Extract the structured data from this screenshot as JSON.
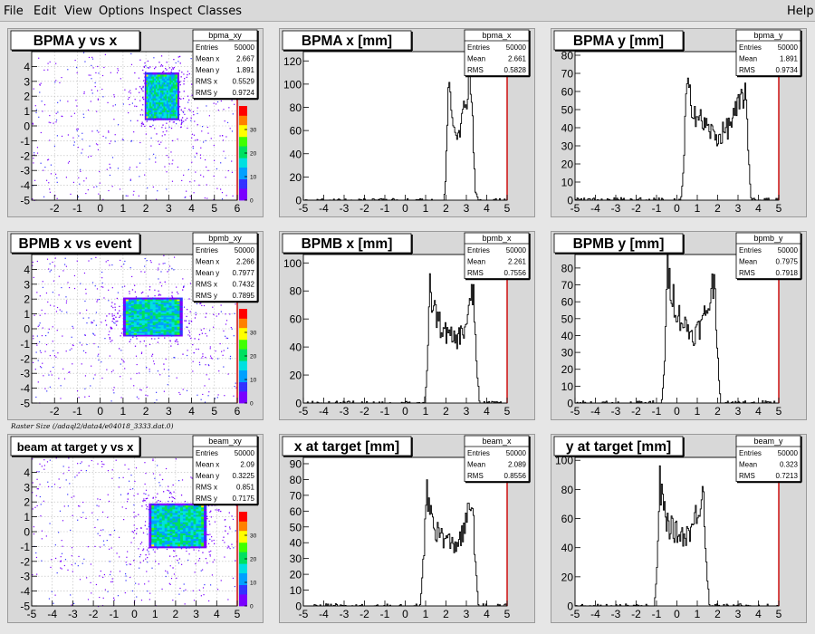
{
  "menu": {
    "items": [
      "File",
      "Edit",
      "View",
      "Options",
      "Inspect",
      "Classes"
    ],
    "help": "Help"
  },
  "caption": "Raster Size (/adaql2/data4/e04018_3333.dat.0)",
  "colors": {
    "frame_bg": "#d8d8d8",
    "plot_bg": "#ffffff",
    "axis_right": "#cc0000",
    "histogram_line": "#000000",
    "palette": [
      "#7a00ff",
      "#3333ff",
      "#00a0ff",
      "#00e0e0",
      "#00e060",
      "#40ff00",
      "#ffff00",
      "#ff8000",
      "#ff0000"
    ]
  },
  "chart_data": [
    {
      "type": "heatmap",
      "title": "BPMA y vs x",
      "stats": {
        "name": "bpma_xy",
        "rows": [
          [
            "Entries",
            "50000"
          ],
          [
            "Mean x",
            "2.667"
          ],
          [
            "Mean y",
            "1.891"
          ],
          [
            "RMS x",
            "0.5529"
          ],
          [
            "RMS y",
            "0.9724"
          ]
        ]
      },
      "xlim": [
        -3,
        6
      ],
      "ylim": [
        -5,
        5
      ],
      "x_ticks": [
        "-2",
        "-1",
        "0",
        "1",
        "2",
        "3",
        "4",
        "5",
        "6"
      ],
      "y_ticks": [
        "-5",
        "-4",
        "-3",
        "-2",
        "-1",
        "0",
        "1",
        "2",
        "3",
        "4"
      ],
      "z_ticks": [
        "0",
        "10",
        "20",
        "30"
      ],
      "zlim": [
        0,
        40
      ],
      "core": {
        "x_range": [
          1.95,
          3.45
        ],
        "y_range": [
          0.4,
          3.6
        ]
      },
      "grid": true
    },
    {
      "type": "area",
      "title": "BPMA x [mm]",
      "stats": {
        "name": "bpma_x",
        "rows": [
          [
            "Entries",
            "50000"
          ],
          [
            "Mean",
            "2.661"
          ],
          [
            "RMS",
            "0.5828"
          ]
        ]
      },
      "xlim": [
        -5,
        5
      ],
      "ylim": [
        0,
        128
      ],
      "x_ticks": [
        "-5",
        "-4",
        "-3",
        "-2",
        "-1",
        "0",
        "1",
        "2",
        "3",
        "4",
        "5"
      ],
      "y_ticks": [
        "0",
        "20",
        "40",
        "60",
        "80",
        "100",
        "120"
      ],
      "profile_x": [
        -5,
        1.9,
        2.0,
        2.1,
        2.2,
        2.4,
        2.6,
        2.8,
        3.0,
        3.2,
        3.3,
        3.45,
        3.6,
        5
      ],
      "profile_y": [
        0,
        0,
        20,
        95,
        100,
        62,
        62,
        68,
        90,
        112,
        70,
        8,
        0,
        0
      ]
    },
    {
      "type": "area",
      "title": "BPMA y [mm]",
      "stats": {
        "name": "bpma_y",
        "rows": [
          [
            "Entries",
            "50000"
          ],
          [
            "Mean",
            "1.891"
          ],
          [
            "RMS",
            "0.9734"
          ]
        ]
      },
      "xlim": [
        -5,
        5
      ],
      "ylim": [
        0,
        82
      ],
      "x_ticks": [
        "-5",
        "-4",
        "-3",
        "-2",
        "-1",
        "0",
        "1",
        "2",
        "3",
        "4",
        "5"
      ],
      "y_ticks": [
        "0",
        "10",
        "20",
        "30",
        "40",
        "50",
        "60",
        "70",
        "80"
      ],
      "profile_x": [
        -5,
        0.2,
        0.35,
        0.45,
        0.6,
        1.0,
        1.5,
        2.0,
        2.5,
        3.0,
        3.35,
        3.5,
        3.65,
        5
      ],
      "profile_y": [
        0,
        0,
        20,
        60,
        58,
        46,
        40,
        34,
        40,
        50,
        62,
        28,
        0,
        0
      ]
    },
    {
      "type": "heatmap",
      "title": "BPMB x vs event",
      "stats": {
        "name": "bpmb_xy",
        "rows": [
          [
            "Entries",
            "50000"
          ],
          [
            "Mean x",
            "2.266"
          ],
          [
            "Mean y",
            "0.7977"
          ],
          [
            "RMS x",
            "0.7432"
          ],
          [
            "RMS y",
            "0.7895"
          ]
        ]
      },
      "xlim": [
        -3,
        6
      ],
      "ylim": [
        -5,
        5
      ],
      "x_ticks": [
        "-2",
        "-1",
        "0",
        "1",
        "2",
        "3",
        "4",
        "5",
        "6"
      ],
      "y_ticks": [
        "-5",
        "-4",
        "-3",
        "-2",
        "-1",
        "0",
        "1",
        "2",
        "3",
        "4"
      ],
      "z_ticks": [
        "0",
        "10",
        "20",
        "30"
      ],
      "zlim": [
        0,
        40
      ],
      "core": {
        "x_range": [
          1.0,
          3.6
        ],
        "y_range": [
          -0.5,
          2.1
        ]
      },
      "grid": true
    },
    {
      "type": "area",
      "title": "BPMB x [mm]",
      "stats": {
        "name": "bpmb_x",
        "rows": [
          [
            "Entries",
            "50000"
          ],
          [
            "Mean",
            "2.261"
          ],
          [
            "RMS",
            "0.7556"
          ]
        ]
      },
      "xlim": [
        -5,
        5
      ],
      "ylim": [
        0,
        106
      ],
      "x_ticks": [
        "-5",
        "-4",
        "-3",
        "-2",
        "-1",
        "0",
        "1",
        "2",
        "3",
        "4",
        "5"
      ],
      "y_ticks": [
        "0",
        "20",
        "40",
        "60",
        "80",
        "100"
      ],
      "profile_x": [
        -5,
        0.95,
        1.1,
        1.2,
        1.35,
        1.7,
        2.1,
        2.5,
        2.9,
        3.2,
        3.35,
        3.5,
        3.65,
        5
      ],
      "profile_y": [
        0,
        0,
        25,
        82,
        70,
        56,
        48,
        45,
        52,
        70,
        80,
        30,
        0,
        0
      ]
    },
    {
      "type": "area",
      "title": "BPMB y [mm]",
      "stats": {
        "name": "bpmb_y",
        "rows": [
          [
            "Entries",
            "50000"
          ],
          [
            "Mean",
            "0.7975"
          ],
          [
            "RMS",
            "0.7918"
          ]
        ]
      },
      "xlim": [
        -5,
        5
      ],
      "ylim": [
        0,
        88
      ],
      "x_ticks": [
        "-5",
        "-4",
        "-3",
        "-2",
        "-1",
        "0",
        "1",
        "2",
        "3",
        "4",
        "5"
      ],
      "y_ticks": [
        "0",
        "10",
        "20",
        "30",
        "40",
        "50",
        "60",
        "70",
        "80"
      ],
      "profile_x": [
        -5,
        -0.75,
        -0.6,
        -0.45,
        -0.3,
        0,
        0.4,
        0.8,
        1.2,
        1.6,
        1.85,
        2.0,
        2.15,
        5
      ],
      "profile_y": [
        0,
        0,
        25,
        78,
        70,
        54,
        46,
        40,
        46,
        60,
        75,
        30,
        0,
        0
      ]
    },
    {
      "type": "heatmap",
      "title": "beam at target y vs x",
      "stats": {
        "name": "beam_xy",
        "rows": [
          [
            "Entries",
            "50000"
          ],
          [
            "Mean x",
            "2.09"
          ],
          [
            "Mean y",
            "0.3225"
          ],
          [
            "RMS x",
            "0.851"
          ],
          [
            "RMS y",
            "0.7175"
          ]
        ]
      },
      "xlim": [
        -5,
        5
      ],
      "ylim": [
        -5,
        5
      ],
      "x_ticks": [
        "-5",
        "-4",
        "-3",
        "-2",
        "-1",
        "0",
        "1",
        "2",
        "3",
        "4",
        "5"
      ],
      "y_ticks": [
        "-5",
        "-4",
        "-3",
        "-2",
        "-1",
        "0",
        "1",
        "2",
        "3",
        "4"
      ],
      "z_ticks": [
        "0",
        "10",
        "20",
        "30"
      ],
      "zlim": [
        0,
        40
      ],
      "core": {
        "x_range": [
          0.7,
          3.5
        ],
        "y_range": [
          -1.1,
          1.9
        ]
      },
      "grid": true
    },
    {
      "type": "area",
      "title": "x at target [mm]",
      "stats": {
        "name": "beam_x",
        "rows": [
          [
            "Entries",
            "50000"
          ],
          [
            "Mean",
            "2.089"
          ],
          [
            "RMS",
            "0.8556"
          ]
        ]
      },
      "xlim": [
        -5,
        5
      ],
      "ylim": [
        0,
        94
      ],
      "x_ticks": [
        "-5",
        "-4",
        "-3",
        "-2",
        "-1",
        "0",
        "1",
        "2",
        "3",
        "4",
        "5"
      ],
      "y_ticks": [
        "0",
        "10",
        "20",
        "30",
        "40",
        "50",
        "60",
        "70",
        "80",
        "90"
      ],
      "profile_x": [
        -5,
        0.75,
        0.9,
        1.05,
        1.2,
        1.5,
        2.0,
        2.4,
        2.8,
        3.1,
        3.3,
        3.45,
        3.6,
        5
      ],
      "profile_y": [
        0,
        0,
        30,
        70,
        62,
        48,
        42,
        38,
        44,
        58,
        70,
        25,
        0,
        0
      ]
    },
    {
      "type": "area",
      "title": "y at target [mm]",
      "stats": {
        "name": "beam_y",
        "rows": [
          [
            "Entries",
            "50000"
          ],
          [
            "Mean",
            "0.323"
          ],
          [
            "RMS",
            "0.7213"
          ]
        ]
      },
      "xlim": [
        -5,
        5
      ],
      "ylim": [
        0,
        102
      ],
      "x_ticks": [
        "-5",
        "-4",
        "-3",
        "-2",
        "-1",
        "0",
        "1",
        "2",
        "3",
        "4",
        "5"
      ],
      "y_ticks": [
        "0",
        "20",
        "40",
        "60",
        "80",
        "100"
      ],
      "profile_x": [
        -5,
        -1.1,
        -0.95,
        -0.85,
        -0.7,
        -0.4,
        0,
        0.4,
        0.8,
        1.1,
        1.3,
        1.45,
        1.6,
        5
      ],
      "profile_y": [
        0,
        0,
        30,
        85,
        70,
        55,
        50,
        48,
        55,
        70,
        82,
        30,
        0,
        0
      ]
    }
  ]
}
